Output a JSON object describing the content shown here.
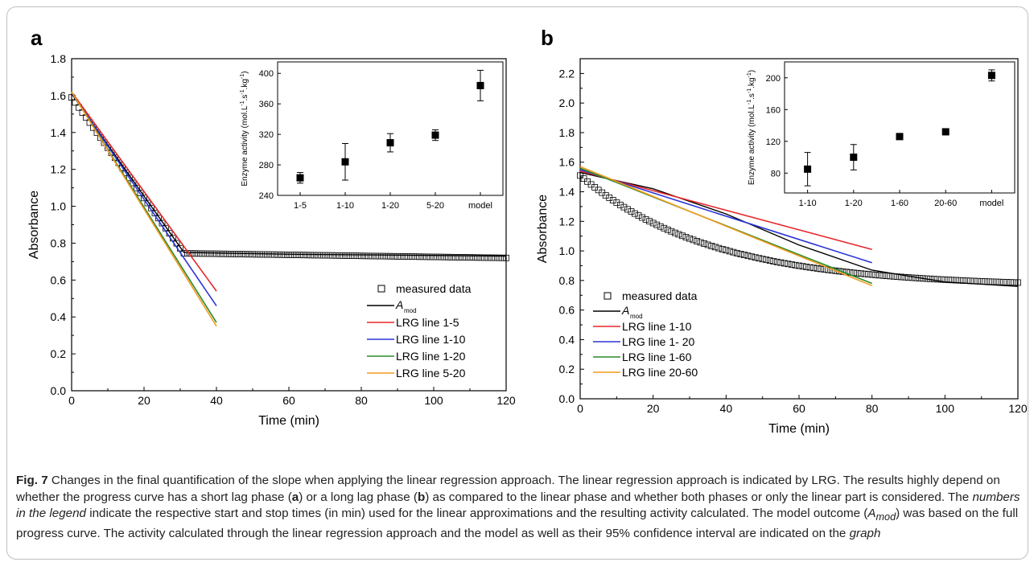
{
  "panels": [
    {
      "label": "a"
    },
    {
      "label": "b"
    }
  ],
  "caption": {
    "fig": "Fig. 7",
    "p1": "Changes in the final quantification of the slope when applying the linear regression approach. The linear regression approach is indicated by LRG. The results highly depend on whether the progress curve has a short lag phase (",
    "a": "a",
    "p2": ") or a long lag phase (",
    "b": "b",
    "p3": ") as compared to the linear phase and whether both phases or only the linear part is considered. The ",
    "i1": "numbers in the legend",
    "p4": " indicate the respective start and stop times (in min) used for the linear approximations and the resulting activity calculated. The model outcome (",
    "i2": "A",
    "i2sub": "mod",
    "p5": ") was based on the full progress curve. The activity calculated through the linear regression approach and the model as well as their 95% confidence interval are indicated on the ",
    "i3": "graph"
  },
  "colors": {
    "red": "#e8262a",
    "blue": "#2b35d6",
    "green": "#2a8a2a",
    "orange": "#f39a1c",
    "black": "#000000"
  },
  "chart_data": [
    {
      "type": "line",
      "panel": "a",
      "xlabel": "Time (min)",
      "ylabel": "Absorbance",
      "xlim": [
        0,
        120
      ],
      "ylim": [
        0,
        1.8
      ],
      "xticks": [
        0,
        20,
        40,
        60,
        80,
        100,
        120
      ],
      "yticks": [
        0.0,
        0.2,
        0.4,
        0.6,
        0.8,
        1.0,
        1.2,
        1.4,
        1.6,
        1.8
      ],
      "measured": {
        "name": "measured data",
        "lag_end": 31,
        "start": 1.59,
        "plateau": 0.745,
        "end": 0.72
      },
      "model": {
        "name": "A",
        "sub": "mod",
        "points": [
          [
            0,
            1.61
          ],
          [
            31,
            0.75
          ],
          [
            60,
            0.74
          ],
          [
            120,
            0.73
          ]
        ]
      },
      "series": [
        {
          "name": "LRG line 1-5",
          "color": "red",
          "x": [
            0,
            40
          ],
          "y": [
            1.62,
            0.54
          ]
        },
        {
          "name": "LRG line 1-10",
          "color": "blue",
          "x": [
            0,
            40
          ],
          "y": [
            1.615,
            0.46
          ]
        },
        {
          "name": "LRG line 1-20",
          "color": "green",
          "x": [
            0,
            40
          ],
          "y": [
            1.62,
            0.37
          ]
        },
        {
          "name": "LRG line 5-20",
          "color": "orange",
          "x": [
            0,
            40
          ],
          "y": [
            1.62,
            0.35
          ]
        }
      ],
      "inset": {
        "type": "scatter",
        "ylabel": "Enzyme activity (mol.L",
        "ylabel_sup1": "-1",
        "ylabel_mid": ".s",
        "ylabel_sup2": "-1",
        "ylabel_mid2": ".kg",
        "ylabel_sup3": "-1",
        "ylabel_end": ")",
        "categories": [
          "1-5",
          "1-10",
          "1-20",
          "5-20",
          "model"
        ],
        "values": [
          263,
          284,
          309,
          319,
          384
        ],
        "errors": [
          7,
          24,
          12,
          7,
          20
        ],
        "ylim": [
          240,
          415
        ],
        "yticks": [
          240,
          280,
          320,
          360,
          400
        ]
      }
    },
    {
      "type": "line",
      "panel": "b",
      "xlabel": "Time (min)",
      "ylabel": "Absorbance",
      "xlim": [
        0,
        120
      ],
      "ylim": [
        0,
        2.3
      ],
      "xticks": [
        0,
        20,
        40,
        60,
        80,
        100,
        120
      ],
      "yticks": [
        0.0,
        0.2,
        0.4,
        0.6,
        0.8,
        1.0,
        1.2,
        1.4,
        1.6,
        1.8,
        2.0,
        2.2
      ],
      "measured": {
        "name": "measured data",
        "start": 1.51,
        "end": 0.76
      },
      "model": {
        "name": "A",
        "sub": "mod",
        "points": [
          [
            0,
            1.53
          ],
          [
            20,
            1.42
          ],
          [
            40,
            1.25
          ],
          [
            60,
            1.04
          ],
          [
            80,
            0.87
          ],
          [
            100,
            0.79
          ],
          [
            120,
            0.76
          ]
        ]
      },
      "series": [
        {
          "name": "LRG line 1-10",
          "color": "red",
          "x": [
            0,
            80
          ],
          "y": [
            1.54,
            1.01
          ]
        },
        {
          "name": "LRG line 1- 20",
          "color": "blue",
          "x": [
            0,
            80
          ],
          "y": [
            1.55,
            0.92
          ]
        },
        {
          "name": "LRG line 1-60",
          "color": "green",
          "x": [
            0,
            80
          ],
          "y": [
            1.56,
            0.78
          ]
        },
        {
          "name": "LRG line 20-60",
          "color": "orange",
          "x": [
            0,
            80
          ],
          "y": [
            1.57,
            0.765
          ]
        }
      ],
      "inset": {
        "type": "scatter",
        "ylabel": "Enzyme activity (mol.L",
        "ylabel_sup1": "-1",
        "ylabel_mid": ".s",
        "ylabel_sup2": "-1",
        "ylabel_mid2": ".kg",
        "ylabel_sup3": "-1",
        "ylabel_end": ")",
        "categories": [
          "1-10",
          "1-20",
          "1-60",
          "20-60",
          "model"
        ],
        "values": [
          85,
          100,
          126,
          132,
          203
        ],
        "errors": [
          21,
          16,
          2,
          2,
          7
        ],
        "ylim": [
          55,
          220
        ],
        "yticks": [
          80,
          120,
          160,
          200
        ]
      }
    }
  ]
}
